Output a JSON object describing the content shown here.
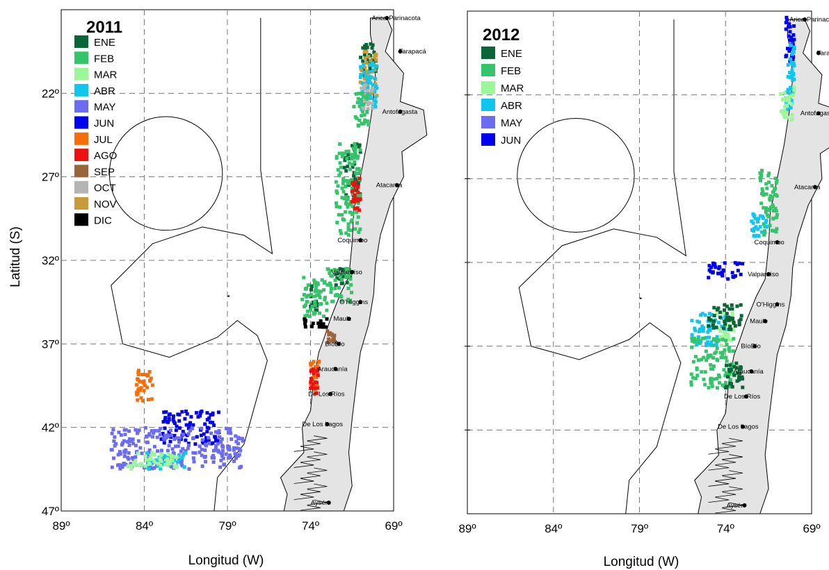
{
  "axes": {
    "xlabel": "Longitud (W)",
    "ylabel": "Latitud (S)",
    "x_ticks": [
      "89º",
      "84º",
      "79º",
      "74º",
      "69º"
    ],
    "y_ticks": [
      "22º",
      "27º",
      "32º",
      "37º",
      "42º",
      "47º"
    ]
  },
  "colors": {
    "ENE": "#0b6637",
    "FEB": "#36c46a",
    "MAR": "#9cf79a",
    "ABR": "#11c6ee",
    "MAY": "#6c6cf0",
    "JUN": "#0000ee",
    "JUL": "#f76d08",
    "AGO": "#ee1111",
    "SEP": "#9a643c",
    "OCT": "#b4b4b4",
    "NOV": "#c99a3a",
    "DIC": "#000000"
  },
  "cities": [
    "Arica-Parinacota",
    "Tarapacá",
    "Antofagasta",
    "Atacama",
    "Coquimbo",
    "Valparaíso",
    "O'Higgins",
    "Maule",
    "BíoBío",
    "Araucanía",
    "De Los Ríos",
    "De Los Lagos",
    "Aysén"
  ],
  "chart_data": [
    {
      "type": "map",
      "title": "2011",
      "xlabel": "Longitud (W)",
      "ylabel": "Latitud (S)",
      "xlim": [
        89,
        69
      ],
      "ylim": [
        47,
        17
      ],
      "grid": true,
      "legend_position": "top-left",
      "legend": [
        "ENE",
        "FEB",
        "MAR",
        "ABR",
        "MAY",
        "JUN",
        "JUL",
        "AGO",
        "SEP",
        "OCT",
        "NOV",
        "DIC"
      ],
      "clusters": [
        {
          "month": "ENE",
          "lon": [
            70.0,
            71.0
          ],
          "lat": [
            19.0,
            21.0
          ]
        },
        {
          "month": "NOV",
          "lon": [
            70.0,
            71.0
          ],
          "lat": [
            19.5,
            22.5
          ]
        },
        {
          "month": "ABR",
          "lon": [
            70.0,
            71.0
          ],
          "lat": [
            20.0,
            23.0
          ]
        },
        {
          "month": "OCT",
          "lon": [
            70.2,
            71.0
          ],
          "lat": [
            21.5,
            23.0
          ]
        },
        {
          "month": "FEB",
          "lon": [
            70.5,
            71.5
          ],
          "lat": [
            22.0,
            24.0
          ]
        },
        {
          "month": "ENE",
          "lon": [
            71.0,
            72.0
          ],
          "lat": [
            25.0,
            28.5
          ]
        },
        {
          "month": "FEB",
          "lon": [
            71.0,
            72.5
          ],
          "lat": [
            25.0,
            30.5
          ]
        },
        {
          "month": "AGO",
          "lon": [
            71.0,
            71.5
          ],
          "lat": [
            27.0,
            29.0
          ]
        },
        {
          "month": "ENE",
          "lon": [
            71.5,
            72.5
          ],
          "lat": [
            32.5,
            33.5
          ]
        },
        {
          "month": "FEB",
          "lon": [
            71.5,
            73.0
          ],
          "lat": [
            32.5,
            34.5
          ]
        },
        {
          "month": "ENE",
          "lon": [
            73.5,
            74.0
          ],
          "lat": [
            33.5,
            35.0
          ]
        },
        {
          "month": "FEB",
          "lon": [
            73.0,
            74.5
          ],
          "lat": [
            33.0,
            35.5
          ]
        },
        {
          "month": "DIC",
          "lon": [
            73.0,
            74.5
          ],
          "lat": [
            35.5,
            36.0
          ]
        },
        {
          "month": "SEP",
          "lon": [
            72.5,
            73.0
          ],
          "lat": [
            36.0,
            37.0
          ]
        },
        {
          "month": "JUL",
          "lon": [
            73.5,
            74.0
          ],
          "lat": [
            38.0,
            40.0
          ]
        },
        {
          "month": "AGO",
          "lon": [
            73.5,
            74.0
          ],
          "lat": [
            38.5,
            40.0
          ]
        },
        {
          "month": "JUL",
          "lon": [
            83.5,
            84.5
          ],
          "lat": [
            38.5,
            40.5
          ]
        },
        {
          "month": "JUN",
          "lon": [
            79.5,
            83.0
          ],
          "lat": [
            41.0,
            43.0
          ]
        },
        {
          "month": "MAY",
          "lon": [
            78.0,
            86.0
          ],
          "lat": [
            42.0,
            44.5
          ]
        },
        {
          "month": "ABR",
          "lon": [
            81.5,
            84.0
          ],
          "lat": [
            43.5,
            44.5
          ]
        },
        {
          "month": "MAR",
          "lon": [
            82.0,
            85.0
          ],
          "lat": [
            43.5,
            44.5
          ]
        }
      ]
    },
    {
      "type": "map",
      "title": "2012",
      "xlabel": "Longitud (W)",
      "ylabel": "",
      "xlim": [
        89,
        69
      ],
      "ylim": [
        47,
        17
      ],
      "grid": true,
      "legend_position": "top-left",
      "legend": [
        "ENE",
        "FEB",
        "MAR",
        "ABR",
        "MAY",
        "JUN"
      ],
      "clusters": [
        {
          "month": "JUN",
          "lon": [
            70.0,
            70.5
          ],
          "lat": [
            17.0,
            20.0
          ]
        },
        {
          "month": "ABR",
          "lon": [
            70.0,
            70.5
          ],
          "lat": [
            19.0,
            23.0
          ]
        },
        {
          "month": "MAR",
          "lon": [
            70.0,
            70.8
          ],
          "lat": [
            21.5,
            23.5
          ]
        },
        {
          "month": "FEB",
          "lon": [
            71.0,
            72.0
          ],
          "lat": [
            26.5,
            30.5
          ]
        },
        {
          "month": "ABR",
          "lon": [
            71.5,
            72.5
          ],
          "lat": [
            29.0,
            30.5
          ]
        },
        {
          "month": "JUN",
          "lon": [
            73.0,
            75.0
          ],
          "lat": [
            32.0,
            33.0
          ]
        },
        {
          "month": "ABR",
          "lon": [
            74.0,
            76.0
          ],
          "lat": [
            35.0,
            37.0
          ]
        },
        {
          "month": "MAR",
          "lon": [
            73.5,
            74.5
          ],
          "lat": [
            35.0,
            37.0
          ]
        },
        {
          "month": "ENE",
          "lon": [
            73.0,
            75.0
          ],
          "lat": [
            34.5,
            36.0
          ]
        },
        {
          "month": "FEB",
          "lon": [
            73.5,
            76.0
          ],
          "lat": [
            36.5,
            39.5
          ]
        },
        {
          "month": "ENE",
          "lon": [
            73.0,
            74.0
          ],
          "lat": [
            38.0,
            39.5
          ]
        }
      ]
    }
  ]
}
